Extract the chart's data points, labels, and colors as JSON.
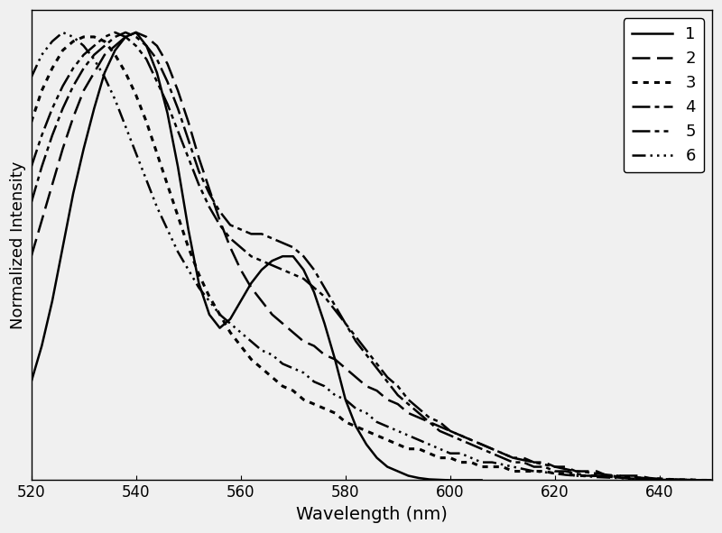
{
  "xlabel": "Wavelength (nm)",
  "ylabel": "Normalized Intensity",
  "xlim": [
    520,
    650
  ],
  "ylim": [
    0,
    1.05
  ],
  "xticks": [
    520,
    540,
    560,
    580,
    600,
    620,
    640
  ],
  "background_color": "#f0f0f0",
  "linewidth": 1.8,
  "legend_labels": [
    "1",
    "2",
    "3",
    "4",
    "5",
    "6"
  ],
  "curve1": {
    "x": [
      520,
      522,
      524,
      526,
      528,
      530,
      532,
      534,
      536,
      538,
      540,
      542,
      544,
      546,
      548,
      550,
      552,
      554,
      556,
      558,
      560,
      562,
      564,
      566,
      568,
      570,
      572,
      574,
      576,
      578,
      580,
      582,
      584,
      586,
      588,
      590,
      592,
      594,
      596,
      598,
      600,
      602,
      604,
      606
    ],
    "y": [
      0.22,
      0.3,
      0.4,
      0.52,
      0.64,
      0.74,
      0.83,
      0.91,
      0.96,
      0.99,
      1.0,
      0.97,
      0.91,
      0.82,
      0.7,
      0.56,
      0.44,
      0.37,
      0.34,
      0.36,
      0.4,
      0.44,
      0.47,
      0.49,
      0.5,
      0.5,
      0.47,
      0.42,
      0.35,
      0.27,
      0.18,
      0.12,
      0.08,
      0.05,
      0.03,
      0.02,
      0.01,
      0.005,
      0.002,
      0.001,
      0.0,
      0.0,
      0.0,
      0.0
    ]
  },
  "curve2": {
    "x": [
      520,
      522,
      524,
      526,
      528,
      530,
      532,
      534,
      536,
      538,
      540,
      542,
      544,
      546,
      548,
      550,
      552,
      554,
      556,
      558,
      560,
      562,
      564,
      566,
      568,
      570,
      572,
      574,
      576,
      578,
      580,
      582,
      584,
      586,
      588,
      590,
      592,
      594,
      596,
      598,
      600,
      602,
      604,
      606,
      608,
      610,
      612,
      614,
      616,
      618,
      620,
      622,
      624,
      626,
      628,
      630,
      632,
      634,
      636,
      638,
      640,
      642,
      644,
      646,
      648,
      650
    ],
    "y": [
      0.5,
      0.58,
      0.66,
      0.74,
      0.81,
      0.87,
      0.91,
      0.95,
      0.97,
      0.99,
      1.0,
      0.99,
      0.97,
      0.93,
      0.87,
      0.8,
      0.72,
      0.65,
      0.58,
      0.52,
      0.47,
      0.43,
      0.4,
      0.37,
      0.35,
      0.33,
      0.31,
      0.3,
      0.28,
      0.27,
      0.25,
      0.23,
      0.21,
      0.2,
      0.18,
      0.17,
      0.15,
      0.14,
      0.13,
      0.12,
      0.11,
      0.1,
      0.09,
      0.08,
      0.07,
      0.06,
      0.05,
      0.05,
      0.04,
      0.04,
      0.03,
      0.03,
      0.02,
      0.02,
      0.02,
      0.01,
      0.01,
      0.01,
      0.01,
      0.005,
      0.003,
      0.002,
      0.001,
      0.001,
      0.0,
      0.0
    ]
  },
  "curve3": {
    "x": [
      520,
      522,
      524,
      526,
      528,
      530,
      532,
      534,
      536,
      538,
      540,
      542,
      544,
      546,
      548,
      550,
      552,
      554,
      556,
      558,
      560,
      562,
      564,
      566,
      568,
      570,
      572,
      574,
      576,
      578,
      580,
      582,
      584,
      586,
      588,
      590,
      592,
      594,
      596,
      598,
      600,
      602,
      604,
      606,
      608,
      610,
      612,
      614,
      616,
      618,
      620,
      622,
      624,
      626,
      628,
      630,
      632,
      634,
      636,
      638,
      640,
      642,
      644,
      646,
      648,
      650
    ],
    "y": [
      0.8,
      0.87,
      0.92,
      0.96,
      0.98,
      0.99,
      0.99,
      0.98,
      0.95,
      0.91,
      0.86,
      0.8,
      0.73,
      0.66,
      0.59,
      0.52,
      0.46,
      0.41,
      0.37,
      0.33,
      0.3,
      0.27,
      0.25,
      0.23,
      0.21,
      0.2,
      0.18,
      0.17,
      0.16,
      0.15,
      0.13,
      0.12,
      0.11,
      0.1,
      0.09,
      0.08,
      0.07,
      0.07,
      0.06,
      0.05,
      0.05,
      0.04,
      0.04,
      0.03,
      0.03,
      0.03,
      0.02,
      0.02,
      0.02,
      0.02,
      0.015,
      0.015,
      0.01,
      0.01,
      0.01,
      0.01,
      0.008,
      0.006,
      0.005,
      0.004,
      0.003,
      0.002,
      0.001,
      0.001,
      0.0,
      0.0
    ]
  },
  "curve4": {
    "x": [
      520,
      522,
      524,
      526,
      528,
      530,
      532,
      534,
      536,
      538,
      540,
      542,
      544,
      546,
      548,
      550,
      552,
      554,
      556,
      558,
      560,
      562,
      564,
      566,
      568,
      570,
      572,
      574,
      576,
      578,
      580,
      582,
      584,
      586,
      588,
      590,
      592,
      594,
      596,
      598,
      600,
      602,
      604,
      606,
      608,
      610,
      612,
      614,
      616,
      618,
      620,
      622,
      624,
      626,
      628,
      630,
      632,
      634,
      636,
      638,
      640,
      642,
      644,
      646,
      648,
      650
    ],
    "y": [
      0.62,
      0.7,
      0.77,
      0.83,
      0.88,
      0.92,
      0.95,
      0.97,
      0.99,
      1.0,
      0.99,
      0.97,
      0.94,
      0.89,
      0.83,
      0.76,
      0.69,
      0.64,
      0.6,
      0.57,
      0.56,
      0.55,
      0.55,
      0.54,
      0.53,
      0.52,
      0.5,
      0.47,
      0.43,
      0.39,
      0.35,
      0.31,
      0.28,
      0.25,
      0.22,
      0.19,
      0.17,
      0.15,
      0.13,
      0.11,
      0.1,
      0.09,
      0.08,
      0.07,
      0.06,
      0.05,
      0.04,
      0.04,
      0.03,
      0.03,
      0.02,
      0.02,
      0.015,
      0.01,
      0.01,
      0.008,
      0.006,
      0.004,
      0.003,
      0.002,
      0.001,
      0.001,
      0.0,
      0.0,
      0.0,
      0.0
    ]
  },
  "curve5": {
    "x": [
      520,
      522,
      524,
      526,
      528,
      530,
      532,
      534,
      536,
      538,
      540,
      542,
      544,
      546,
      548,
      550,
      552,
      554,
      556,
      558,
      560,
      562,
      564,
      566,
      568,
      570,
      572,
      574,
      576,
      578,
      580,
      582,
      584,
      586,
      588,
      590,
      592,
      594,
      596,
      598,
      600,
      602,
      604,
      606,
      608,
      610,
      612,
      614,
      616,
      618,
      620,
      622,
      624,
      626,
      628,
      630,
      632,
      634,
      636,
      638,
      640,
      642,
      644,
      646,
      648,
      650
    ],
    "y": [
      0.7,
      0.77,
      0.83,
      0.88,
      0.92,
      0.95,
      0.97,
      0.99,
      1.0,
      0.99,
      0.97,
      0.94,
      0.89,
      0.84,
      0.78,
      0.72,
      0.66,
      0.61,
      0.57,
      0.54,
      0.52,
      0.5,
      0.49,
      0.48,
      0.47,
      0.46,
      0.45,
      0.43,
      0.41,
      0.38,
      0.35,
      0.32,
      0.29,
      0.26,
      0.23,
      0.21,
      0.18,
      0.16,
      0.14,
      0.13,
      0.11,
      0.1,
      0.09,
      0.08,
      0.07,
      0.06,
      0.05,
      0.045,
      0.04,
      0.035,
      0.03,
      0.025,
      0.02,
      0.018,
      0.015,
      0.012,
      0.01,
      0.008,
      0.006,
      0.004,
      0.003,
      0.002,
      0.001,
      0.001,
      0.0,
      0.0
    ]
  },
  "curve6": {
    "x": [
      520,
      522,
      524,
      526,
      528,
      530,
      532,
      534,
      536,
      538,
      540,
      542,
      544,
      546,
      548,
      550,
      552,
      554,
      556,
      558,
      560,
      562,
      564,
      566,
      568,
      570,
      572,
      574,
      576,
      578,
      580,
      582,
      584,
      586,
      588,
      590,
      592,
      594,
      596,
      598,
      600,
      602,
      604,
      606,
      608,
      610,
      612,
      614,
      616,
      618,
      620,
      622,
      624,
      626,
      628,
      630,
      632,
      634,
      636,
      638,
      640,
      642,
      644,
      646,
      648,
      650
    ],
    "y": [
      0.9,
      0.95,
      0.98,
      1.0,
      0.99,
      0.97,
      0.94,
      0.9,
      0.85,
      0.79,
      0.73,
      0.67,
      0.61,
      0.56,
      0.51,
      0.47,
      0.43,
      0.4,
      0.37,
      0.35,
      0.33,
      0.31,
      0.29,
      0.28,
      0.26,
      0.25,
      0.24,
      0.22,
      0.21,
      0.19,
      0.18,
      0.16,
      0.15,
      0.13,
      0.12,
      0.11,
      0.1,
      0.09,
      0.08,
      0.07,
      0.06,
      0.06,
      0.05,
      0.04,
      0.04,
      0.035,
      0.03,
      0.025,
      0.02,
      0.018,
      0.015,
      0.012,
      0.01,
      0.009,
      0.007,
      0.006,
      0.005,
      0.004,
      0.003,
      0.002,
      0.002,
      0.001,
      0.001,
      0.0,
      0.0,
      0.0
    ]
  }
}
